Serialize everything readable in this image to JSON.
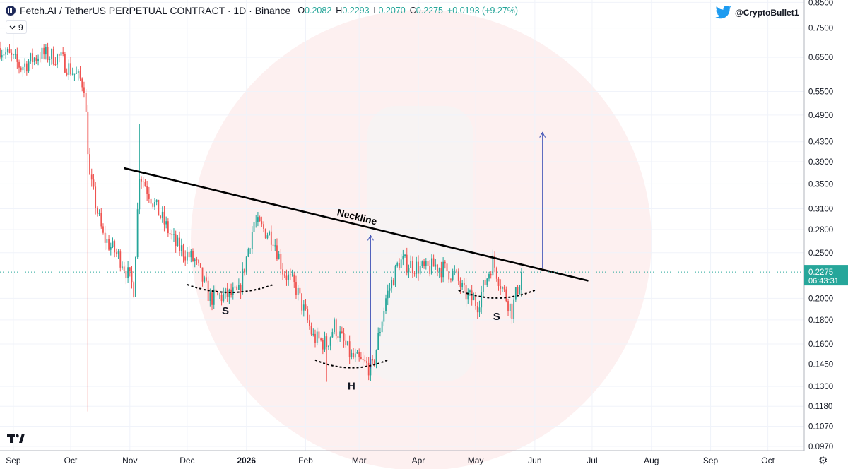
{
  "header": {
    "title": "Fetch.AI / TetherUS PERPETUAL CONTRACT · 1D · Binance",
    "open_label": "O",
    "open": "0.2082",
    "high_label": "H",
    "high": "0.2293",
    "low_label": "L",
    "low": "0.2070",
    "close_label": "C",
    "close": "0.2275",
    "change": "+0.0193 (+9.27%)"
  },
  "indicator_toggle": {
    "chevron_icon": "chevron-down-icon",
    "count": "9"
  },
  "credit": {
    "icon": "twitter-bird-icon",
    "handle": "@CryptoBullet1"
  },
  "branding": {
    "logo_icon": "tradingview-logo-icon",
    "logo_text": "TV"
  },
  "settings": {
    "icon": "gear-icon"
  },
  "price_tag": {
    "price": "0.2275",
    "countdown": "06:43:31"
  },
  "colors": {
    "up": "#26a69a",
    "down": "#ef5350",
    "neckline": "#000000",
    "target_arrow": "#3f51b5",
    "axis_text": "#131722",
    "last_price_bg": "#26a69a"
  },
  "chart_data": {
    "type": "candlestick",
    "y_scale": "log",
    "ylim": [
      0.095,
      0.86
    ],
    "x_range": [
      "2025-08-25",
      "2026-10-20"
    ],
    "x_ticks": [
      {
        "date": "2025-09-01",
        "label": "Sep"
      },
      {
        "date": "2025-10-01",
        "label": "Oct"
      },
      {
        "date": "2025-11-01",
        "label": "Nov"
      },
      {
        "date": "2025-12-01",
        "label": "Dec"
      },
      {
        "date": "2026-01-01",
        "label": "2026"
      },
      {
        "date": "2026-02-01",
        "label": "Feb"
      },
      {
        "date": "2026-03-01",
        "label": "Mar"
      },
      {
        "date": "2026-04-01",
        "label": "Apr"
      },
      {
        "date": "2026-05-01",
        "label": "May"
      },
      {
        "date": "2026-06-01",
        "label": "Jun"
      },
      {
        "date": "2026-07-01",
        "label": "Jul"
      },
      {
        "date": "2026-08-01",
        "label": "Aug"
      },
      {
        "date": "2026-09-01",
        "label": "Sep"
      },
      {
        "date": "2026-10-01",
        "label": "Oct"
      }
    ],
    "y_ticks": [
      {
        "value": 0.85,
        "label": "0.8500"
      },
      {
        "value": 0.75,
        "label": "0.7500"
      },
      {
        "value": 0.65,
        "label": "0.6500"
      },
      {
        "value": 0.55,
        "label": "0.5500"
      },
      {
        "value": 0.49,
        "label": "0.4900"
      },
      {
        "value": 0.43,
        "label": "0.4300"
      },
      {
        "value": 0.39,
        "label": "0.3900"
      },
      {
        "value": 0.35,
        "label": "0.3500"
      },
      {
        "value": 0.31,
        "label": "0.3100"
      },
      {
        "value": 0.28,
        "label": "0.2800"
      },
      {
        "value": 0.25,
        "label": "0.2500"
      },
      {
        "value": 0.2,
        "label": "0.2000"
      },
      {
        "value": 0.18,
        "label": "0.1800"
      },
      {
        "value": 0.16,
        "label": "0.1600"
      },
      {
        "value": 0.145,
        "label": "0.1450"
      },
      {
        "value": 0.13,
        "label": "0.1300"
      },
      {
        "value": 0.118,
        "label": "0.1180"
      },
      {
        "value": 0.107,
        "label": "0.1070"
      },
      {
        "value": 0.097,
        "label": "0.0970"
      }
    ],
    "last_price": 0.2275,
    "price_anchors": [
      {
        "date": "2025-08-25",
        "price": 0.68
      },
      {
        "date": "2025-09-05",
        "price": 0.62
      },
      {
        "date": "2025-09-15",
        "price": 0.66
      },
      {
        "date": "2025-09-25",
        "price": 0.65
      },
      {
        "date": "2025-10-03",
        "price": 0.6
      },
      {
        "date": "2025-10-08",
        "price": 0.57
      },
      {
        "date": "2025-10-11",
        "price": 0.36
      },
      {
        "date": "2025-10-18",
        "price": 0.27
      },
      {
        "date": "2025-10-28",
        "price": 0.24
      },
      {
        "date": "2025-11-03",
        "price": 0.21
      },
      {
        "date": "2025-11-06",
        "price": 0.37
      },
      {
        "date": "2025-11-15",
        "price": 0.31
      },
      {
        "date": "2025-11-25",
        "price": 0.26
      },
      {
        "date": "2025-12-05",
        "price": 0.24
      },
      {
        "date": "2025-12-13",
        "price": 0.2
      },
      {
        "date": "2025-12-28",
        "price": 0.205
      },
      {
        "date": "2026-01-05",
        "price": 0.29
      },
      {
        "date": "2026-01-15",
        "price": 0.27
      },
      {
        "date": "2026-01-20",
        "price": 0.23
      },
      {
        "date": "2026-01-27",
        "price": 0.21
      },
      {
        "date": "2026-02-05",
        "price": 0.165
      },
      {
        "date": "2026-02-12",
        "price": 0.16
      },
      {
        "date": "2026-02-16",
        "price": 0.175
      },
      {
        "date": "2026-02-25",
        "price": 0.15
      },
      {
        "date": "2026-03-08",
        "price": 0.142
      },
      {
        "date": "2026-03-15",
        "price": 0.2
      },
      {
        "date": "2026-03-22",
        "price": 0.24
      },
      {
        "date": "2026-04-05",
        "price": 0.23
      },
      {
        "date": "2026-04-10",
        "price": 0.235
      },
      {
        "date": "2026-04-20",
        "price": 0.225
      },
      {
        "date": "2026-04-25",
        "price": 0.205
      },
      {
        "date": "2026-05-02",
        "price": 0.195
      },
      {
        "date": "2026-05-10",
        "price": 0.24
      },
      {
        "date": "2026-05-15",
        "price": 0.21
      },
      {
        "date": "2026-05-20",
        "price": 0.188
      },
      {
        "date": "2026-05-25",
        "price": 0.2275
      }
    ],
    "notable_wicks": [
      {
        "date": "2025-10-10",
        "low": 0.115
      },
      {
        "date": "2025-11-06",
        "high": 0.47
      },
      {
        "date": "2026-02-12",
        "low": 0.133
      }
    ],
    "neckline": {
      "label": "Neckline",
      "start": {
        "date": "2025-10-29",
        "price": 0.378
      },
      "end": {
        "date": "2026-06-29",
        "price": 0.218
      }
    },
    "target_arrow": {
      "date": "2026-06-05",
      "from": 0.232,
      "to": 0.45
    },
    "measure_arrow": {
      "date": "2026-03-07",
      "from": 0.142,
      "to": 0.272
    },
    "pattern_labels": [
      {
        "label": "S",
        "date": "2025-12-21",
        "price": 0.185,
        "arc_from": "2025-12-01",
        "arc_to": "2026-01-15"
      },
      {
        "label": "H",
        "date": "2026-02-25",
        "price": 0.128,
        "arc_from": "2026-02-06",
        "arc_to": "2026-03-16"
      },
      {
        "label": "S",
        "date": "2026-05-12",
        "price": 0.18,
        "arc_from": "2026-04-22",
        "arc_to": "2026-06-01"
      }
    ]
  }
}
